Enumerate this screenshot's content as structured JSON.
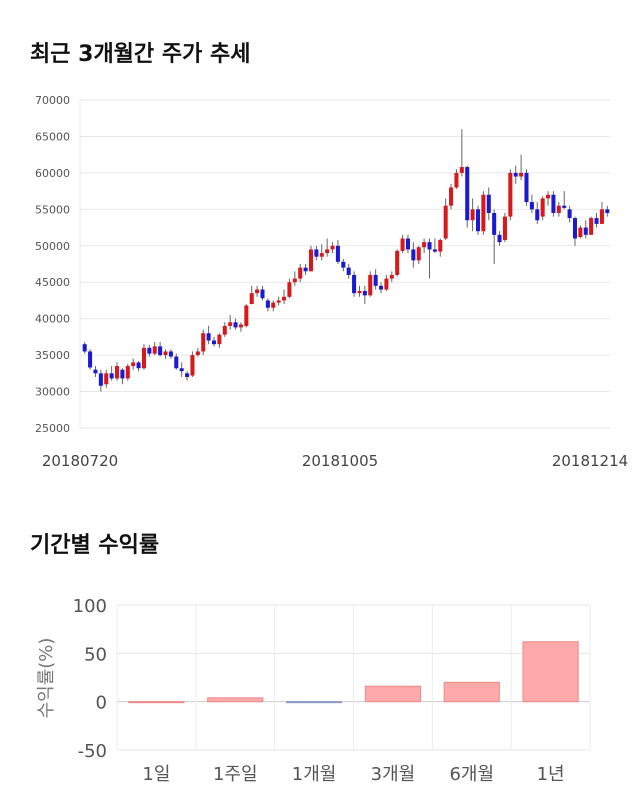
{
  "section1": {
    "title": "최근 3개월간 주가 추세"
  },
  "section2": {
    "title": "기간별 수익률"
  },
  "chart_data": [
    {
      "type": "candlestick",
      "ylim": [
        25000,
        70000
      ],
      "y_ticks": [
        "70000",
        "65000",
        "60000",
        "55000",
        "50000",
        "45000",
        "40000",
        "35000",
        "30000",
        "25000"
      ],
      "x_tick_labels": [
        "20180720",
        "20181005",
        "20181214"
      ],
      "grid": true,
      "colors": {
        "up": "#d7191c",
        "down": "#1a1ad1"
      },
      "candles": [
        [
          36500,
          36800,
          35200,
          35500
        ],
        [
          35500,
          35800,
          33000,
          33300
        ],
        [
          33000,
          33500,
          32000,
          32500
        ],
        [
          32500,
          33000,
          30000,
          30800
        ],
        [
          31000,
          33000,
          30500,
          32500
        ],
        [
          32500,
          33500,
          31500,
          31800
        ],
        [
          31800,
          34000,
          31500,
          33500
        ],
        [
          33000,
          33200,
          31000,
          31800
        ],
        [
          31800,
          33800,
          31500,
          33500
        ],
        [
          33500,
          34500,
          33000,
          34000
        ],
        [
          34000,
          34200,
          32800,
          33200
        ],
        [
          33200,
          36500,
          33000,
          36000
        ],
        [
          36000,
          36400,
          34800,
          35200
        ],
        [
          35200,
          36800,
          35000,
          36200
        ],
        [
          36200,
          36800,
          34800,
          35000
        ],
        [
          35000,
          35800,
          34500,
          35500
        ],
        [
          35500,
          35800,
          34500,
          34800
        ],
        [
          34800,
          35200,
          33000,
          33200
        ],
        [
          33200,
          34000,
          32000,
          32800
        ],
        [
          32500,
          32800,
          31500,
          32000
        ],
        [
          32200,
          35500,
          32000,
          35000
        ],
        [
          35000,
          36000,
          34800,
          35500
        ],
        [
          35500,
          38500,
          35000,
          38000
        ],
        [
          38000,
          39000,
          36500,
          37000
        ],
        [
          37000,
          37500,
          36200,
          36500
        ],
        [
          36500,
          38000,
          36000,
          37800
        ],
        [
          37800,
          39500,
          37500,
          39000
        ],
        [
          39000,
          40500,
          38500,
          39500
        ],
        [
          39500,
          40000,
          38500,
          38800
        ],
        [
          38800,
          39500,
          38200,
          39200
        ],
        [
          39000,
          42000,
          38800,
          41800
        ],
        [
          42000,
          44500,
          42000,
          43500
        ],
        [
          43500,
          44500,
          43000,
          44000
        ],
        [
          44000,
          44500,
          42500,
          42800
        ],
        [
          42500,
          42800,
          41000,
          41500
        ],
        [
          41500,
          42500,
          41000,
          42200
        ],
        [
          42200,
          43000,
          41800,
          42500
        ],
        [
          42500,
          44000,
          42000,
          43000
        ],
        [
          43000,
          45500,
          42800,
          45000
        ],
        [
          45000,
          46500,
          44500,
          45500
        ],
        [
          45500,
          47500,
          45000,
          47000
        ],
        [
          47000,
          47500,
          46000,
          46500
        ],
        [
          46500,
          50000,
          46500,
          49500
        ],
        [
          49500,
          50000,
          48000,
          48500
        ],
        [
          48500,
          50200,
          48000,
          49000
        ],
        [
          49000,
          51000,
          48500,
          49500
        ],
        [
          49500,
          50500,
          49000,
          50000
        ],
        [
          50000,
          50800,
          47500,
          47800
        ],
        [
          47800,
          48200,
          46500,
          47000
        ],
        [
          47000,
          47500,
          45500,
          46000
        ],
        [
          46000,
          46500,
          43000,
          43500
        ],
        [
          43500,
          44500,
          43000,
          43800
        ],
        [
          43800,
          44500,
          42000,
          43200
        ],
        [
          43200,
          46500,
          43000,
          46000
        ],
        [
          46000,
          46800,
          44000,
          44500
        ],
        [
          44500,
          45000,
          43500,
          44000
        ],
        [
          44000,
          46000,
          43800,
          45500
        ],
        [
          45500,
          46500,
          45000,
          46000
        ],
        [
          46000,
          49500,
          45800,
          49300
        ],
        [
          49300,
          51500,
          49000,
          51000
        ],
        [
          51000,
          51500,
          49000,
          49500
        ],
        [
          49500,
          50500,
          47000,
          48000
        ],
        [
          48000,
          50000,
          47500,
          49800
        ],
        [
          49800,
          51000,
          49000,
          50500
        ],
        [
          50500,
          51000,
          45500,
          49500
        ],
        [
          49500,
          51000,
          49000,
          49200
        ],
        [
          49200,
          51000,
          48500,
          50800
        ],
        [
          51000,
          56500,
          50800,
          55500
        ],
        [
          55500,
          58500,
          55000,
          58000
        ],
        [
          58000,
          60500,
          57800,
          60000
        ],
        [
          60000,
          66000,
          59500,
          60800
        ],
        [
          60800,
          61000,
          52500,
          53500
        ],
        [
          53500,
          56500,
          52000,
          55000
        ],
        [
          55000,
          55500,
          51500,
          52000
        ],
        [
          52000,
          57500,
          51500,
          57000
        ],
        [
          57000,
          58000,
          53500,
          54500
        ],
        [
          54500,
          55000,
          47500,
          51500
        ],
        [
          51500,
          52000,
          50000,
          50500
        ],
        [
          50800,
          54500,
          50500,
          54000
        ],
        [
          54000,
          60500,
          53500,
          60000
        ],
        [
          60000,
          61000,
          58500,
          59500
        ],
        [
          59500,
          62500,
          59000,
          60000
        ],
        [
          60000,
          60500,
          55500,
          56000
        ],
        [
          56000,
          57000,
          54500,
          55000
        ],
        [
          55000,
          56000,
          53000,
          53500
        ],
        [
          54000,
          56800,
          53500,
          56500
        ],
        [
          56500,
          57500,
          55500,
          57000
        ],
        [
          57000,
          57500,
          54000,
          54500
        ],
        [
          54500,
          56000,
          54000,
          55500
        ],
        [
          55500,
          57500,
          55000,
          55200
        ],
        [
          55000,
          55500,
          53200,
          53800
        ],
        [
          53800,
          54000,
          50000,
          51000
        ],
        [
          51200,
          52800,
          51000,
          52500
        ],
        [
          52500,
          53500,
          51000,
          51500
        ],
        [
          51500,
          54000,
          51500,
          53800
        ],
        [
          53800,
          54500,
          52500,
          53000
        ],
        [
          53000,
          56000,
          53000,
          55000
        ],
        [
          55000,
          55500,
          54000,
          54500
        ]
      ]
    },
    {
      "type": "bar",
      "categories": [
        "1일",
        "1주일",
        "1개월",
        "3개월",
        "6개월",
        "1년"
      ],
      "values": [
        0,
        4,
        -1,
        16,
        20,
        62
      ],
      "ylabel": "수익률(%)",
      "ylim": [
        -50,
        100
      ],
      "y_ticks": [
        "100",
        "50",
        "0",
        "-50"
      ],
      "grid": true,
      "colors": {
        "positive": "#ffaaaa",
        "positive_stroke": "#ee8888",
        "negative": "#aabbdd",
        "negative_stroke": "#8899cc"
      }
    }
  ]
}
